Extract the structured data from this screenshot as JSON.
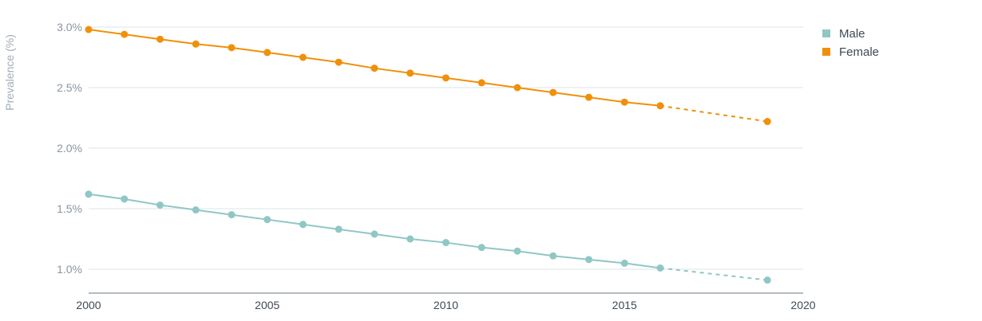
{
  "chart_data": {
    "type": "line",
    "ylabel": "Prevalence (%)",
    "xlim": [
      2000,
      2020
    ],
    "ylim": [
      0.8,
      3.0
    ],
    "x_ticks": [
      {
        "value": 2000,
        "label": "2000"
      },
      {
        "value": 2005,
        "label": "2005"
      },
      {
        "value": 2010,
        "label": "2010"
      },
      {
        "value": 2015,
        "label": "2015"
      },
      {
        "value": 2020,
        "label": "2020"
      }
    ],
    "y_ticks": [
      {
        "value": 1.0,
        "label": "1.0%"
      },
      {
        "value": 1.5,
        "label": "1.5%"
      },
      {
        "value": 2.0,
        "label": "2.0%"
      },
      {
        "value": 2.5,
        "label": "2.5%"
      },
      {
        "value": 3.0,
        "label": "3.0%"
      }
    ],
    "grid": true,
    "legend_position": "top-right",
    "series": [
      {
        "name": "Male",
        "color": "#8fc7c5",
        "x": [
          2000,
          2001,
          2002,
          2003,
          2004,
          2005,
          2006,
          2007,
          2008,
          2009,
          2010,
          2011,
          2012,
          2013,
          2014,
          2015,
          2016
        ],
        "values": [
          1.62,
          1.58,
          1.53,
          1.49,
          1.45,
          1.41,
          1.37,
          1.33,
          1.29,
          1.25,
          1.22,
          1.18,
          1.15,
          1.11,
          1.08,
          1.05,
          1.01
        ],
        "projection": {
          "x": [
            2016,
            2019
          ],
          "values": [
            1.01,
            0.91
          ]
        }
      },
      {
        "name": "Female",
        "color": "#f0900a",
        "x": [
          2000,
          2001,
          2002,
          2003,
          2004,
          2005,
          2006,
          2007,
          2008,
          2009,
          2010,
          2011,
          2012,
          2013,
          2014,
          2015,
          2016
        ],
        "values": [
          2.98,
          2.94,
          2.9,
          2.86,
          2.83,
          2.79,
          2.75,
          2.71,
          2.66,
          2.62,
          2.58,
          2.54,
          2.5,
          2.46,
          2.42,
          2.38,
          2.35
        ],
        "projection": {
          "x": [
            2016,
            2019
          ],
          "values": [
            2.35,
            2.22
          ]
        }
      }
    ]
  }
}
